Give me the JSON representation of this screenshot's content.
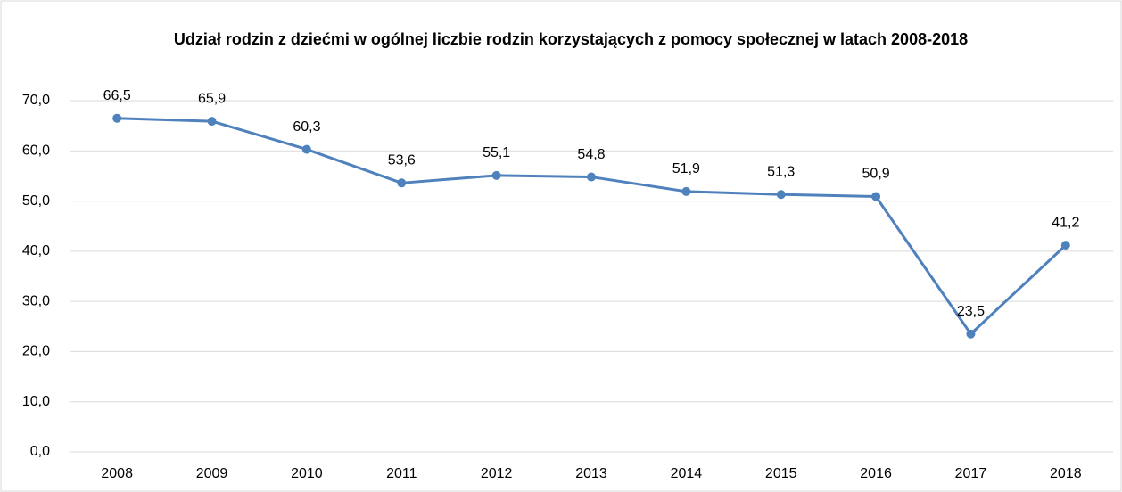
{
  "chart_data": {
    "type": "line",
    "title": "Udział rodzin z dziećmi w ogólnej liczbie rodzin korzystających z pomocy społecznej w latach 2008-2018",
    "categories": [
      "2008",
      "2009",
      "2010",
      "2011",
      "2012",
      "2013",
      "2014",
      "2015",
      "2016",
      "2017",
      "2018"
    ],
    "values": [
      66.5,
      65.9,
      60.3,
      53.6,
      55.1,
      54.8,
      51.9,
      51.3,
      50.9,
      23.5,
      41.2
    ],
    "value_labels": [
      "66,5",
      "65,9",
      "60,3",
      "53,6",
      "55,1",
      "54,8",
      "51,9",
      "51,3",
      "50,9",
      "23,5",
      "41,2"
    ],
    "color": "#4f81bd",
    "ylim": [
      0,
      70
    ],
    "yticks": [
      {
        "value": 0,
        "label": "0,0"
      },
      {
        "value": 10,
        "label": "10,0"
      },
      {
        "value": 20,
        "label": "20,0"
      },
      {
        "value": 30,
        "label": "30,0"
      },
      {
        "value": 40,
        "label": "40,0"
      },
      {
        "value": 50,
        "label": "50,0"
      },
      {
        "value": 60,
        "label": "60,0"
      },
      {
        "value": 70,
        "label": "70,0"
      }
    ],
    "grid": true
  }
}
